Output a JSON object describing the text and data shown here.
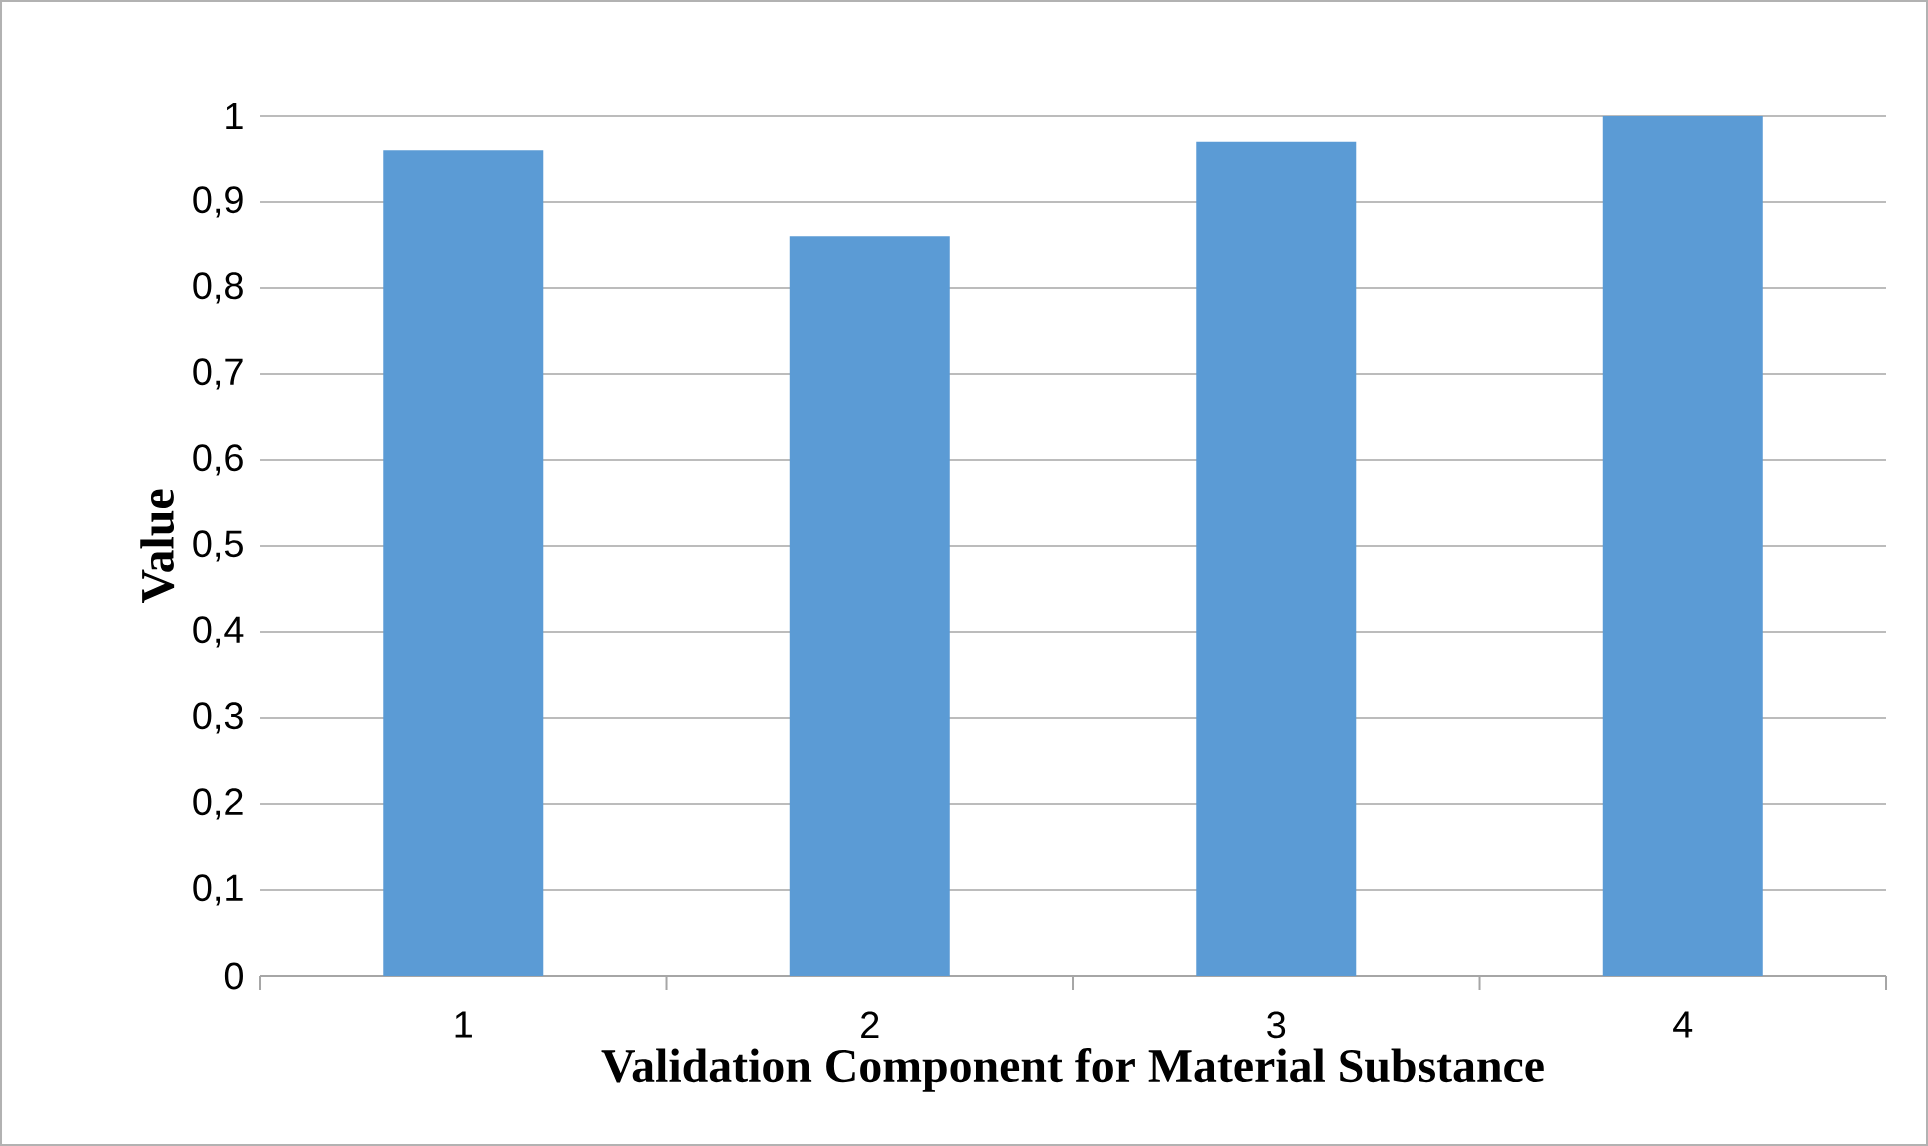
{
  "chart_data": {
    "type": "bar",
    "categories": [
      "1",
      "2",
      "3",
      "4"
    ],
    "values": [
      0.96,
      0.86,
      0.97,
      1.0
    ],
    "color": "#5b9bd5",
    "ylim": [
      0,
      1
    ],
    "yticks": [
      0,
      {
        "value": 0.1,
        "label": "0,1"
      },
      {
        "value": 0.2,
        "label": "0,2"
      },
      {
        "value": 0.3,
        "label": "0,3"
      },
      {
        "value": 0.4,
        "label": "0,4"
      },
      {
        "value": 0.5,
        "label": "0,5"
      },
      {
        "value": 0.6,
        "label": "0,6"
      },
      {
        "value": 0.7,
        "label": "0,7"
      },
      {
        "value": 0.8,
        "label": "0,8"
      },
      {
        "value": 0.9,
        "label": "0,9"
      },
      1
    ],
    "xlabel": "Validation Component for Material Substance",
    "ylabel": "Value",
    "grid": "y"
  }
}
